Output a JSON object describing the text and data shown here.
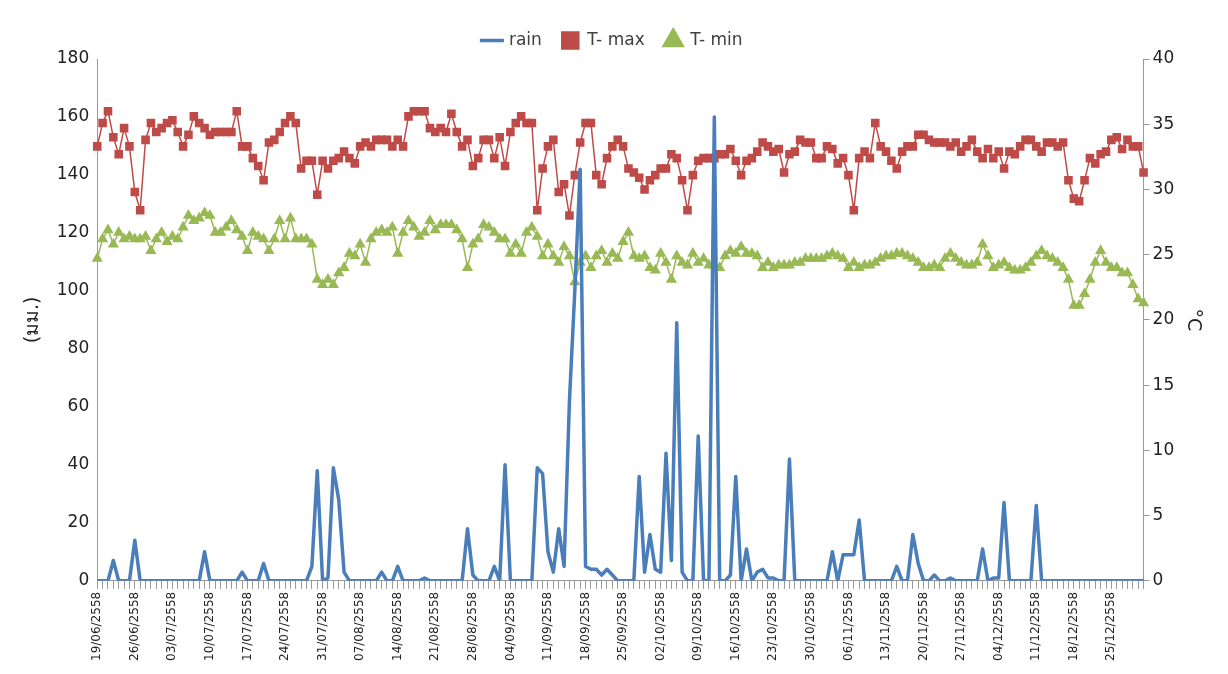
{
  "chart_data": {
    "type": "line",
    "ylabel": "(มม.)",
    "y2label": "°C",
    "legend": "top",
    "grid": false,
    "categories": [
      "19/06/2558",
      null,
      null,
      null,
      null,
      null,
      null,
      "26/06/2558",
      null,
      null,
      null,
      null,
      null,
      null,
      "03/07/2558",
      null,
      null,
      null,
      null,
      null,
      null,
      "10/07/2558",
      null,
      null,
      null,
      null,
      null,
      null,
      "17/07/2558",
      null,
      null,
      null,
      null,
      null,
      null,
      "24/07/2558",
      null,
      null,
      null,
      null,
      null,
      null,
      "31/07/2558",
      null,
      null,
      null,
      null,
      null,
      null,
      "07/08/2558",
      null,
      null,
      null,
      null,
      null,
      null,
      "14/08/2558",
      null,
      null,
      null,
      null,
      null,
      null,
      "21/08/2558",
      null,
      null,
      null,
      null,
      null,
      null,
      "28/08/2558",
      null,
      null,
      null,
      null,
      null,
      null,
      "04/09/2558",
      null,
      null,
      null,
      null,
      null,
      null,
      "11/09/2558",
      null,
      null,
      null,
      null,
      null,
      null,
      "18/09/2558",
      null,
      null,
      null,
      null,
      null,
      null,
      "25/09/2558",
      null,
      null,
      null,
      null,
      null,
      null,
      "02/10/2558",
      null,
      null,
      null,
      null,
      null,
      null,
      "09/10/2558",
      null,
      null,
      null,
      null,
      null,
      null,
      "16/10/2558",
      null,
      null,
      null,
      null,
      null,
      null,
      "23/10/2558",
      null,
      null,
      null,
      null,
      null,
      null,
      "30/10/2558",
      null,
      null,
      null,
      null,
      null,
      null,
      "06/11/2558",
      null,
      null,
      null,
      null,
      null,
      null,
      "13/11/2558",
      null,
      null,
      null,
      null,
      null,
      null,
      "20/11/2558",
      null,
      null,
      null,
      null,
      null,
      null,
      "27/11/2558",
      null,
      null,
      null,
      null,
      null,
      null,
      "04/12/2558",
      null,
      null,
      null,
      null,
      null,
      null,
      "11/12/2558",
      null,
      null,
      null,
      null,
      null,
      null,
      "18/12/2558",
      null,
      null,
      null,
      null,
      null,
      null,
      "25/12/2558",
      null,
      null,
      null,
      null,
      null,
      null
    ],
    "ylim": [
      0,
      180
    ],
    "yticks": [
      0,
      20,
      40,
      60,
      80,
      100,
      120,
      140,
      160,
      180
    ],
    "y2lim": [
      0,
      40
    ],
    "y2ticks": [
      0,
      5,
      10,
      15,
      20,
      25,
      30,
      35,
      40
    ],
    "series": [
      {
        "name": "rain",
        "color": "#4a7ebb",
        "marker": "none",
        "values": [
          0,
          0,
          0,
          7,
          0,
          0,
          0,
          14,
          0,
          0,
          0,
          0,
          0,
          0,
          0,
          0,
          0,
          0,
          0,
          0,
          10,
          0,
          0,
          0,
          0,
          0,
          0,
          3,
          0,
          0,
          0,
          6,
          0,
          0,
          0,
          0,
          0,
          0,
          0,
          0,
          5,
          38,
          0,
          1,
          39,
          28,
          3,
          0,
          0,
          0,
          0,
          0,
          0,
          3,
          0,
          0,
          5,
          0,
          0,
          0,
          0,
          1,
          0,
          0,
          0,
          0,
          0,
          0,
          0,
          18,
          2,
          0,
          0,
          0,
          5,
          0,
          40,
          0,
          0,
          0,
          0,
          0,
          39,
          37,
          10,
          3,
          18,
          5,
          62,
          100,
          142,
          5,
          4,
          4,
          2,
          4,
          2,
          0,
          0,
          0,
          0,
          36,
          3,
          16,
          4,
          3,
          44,
          7,
          89,
          3,
          0,
          0,
          50,
          0,
          0,
          160,
          0,
          0,
          2,
          36,
          0,
          11,
          0,
          3,
          4,
          1,
          1,
          0,
          0,
          42,
          0,
          0,
          0,
          0,
          0,
          0,
          0,
          10,
          0,
          9,
          9,
          9,
          21,
          0,
          0,
          0,
          0,
          0,
          0,
          5,
          0,
          0,
          16,
          6,
          0,
          0,
          2,
          0,
          0,
          1,
          0,
          0,
          0,
          0,
          0,
          11,
          0,
          1,
          1,
          27,
          0,
          0,
          0,
          0,
          0,
          26,
          0,
          0,
          0,
          0,
          0,
          0,
          0,
          0,
          0,
          0,
          0,
          0,
          0,
          0,
          0,
          0,
          0,
          0,
          0,
          0
        ]
      },
      {
        "name": "T- max",
        "color": "#be4b48",
        "marker": "square",
        "axis": "y2",
        "values": [
          33.3,
          35.1,
          36.0,
          34.0,
          32.7,
          34.7,
          33.3,
          29.8,
          28.4,
          33.8,
          35.1,
          34.4,
          34.7,
          35.1,
          35.3,
          34.4,
          33.3,
          34.2,
          35.6,
          35.1,
          34.7,
          34.2,
          34.4,
          34.4,
          34.4,
          34.4,
          36.0,
          33.3,
          33.3,
          32.4,
          31.8,
          30.7,
          33.6,
          33.8,
          34.4,
          35.1,
          35.6,
          35.1,
          31.6,
          32.2,
          32.2,
          29.6,
          32.2,
          31.6,
          32.2,
          32.4,
          32.9,
          32.4,
          32.0,
          33.3,
          33.6,
          33.3,
          33.8,
          33.8,
          33.8,
          33.3,
          33.8,
          33.3,
          35.6,
          36.0,
          36.0,
          36.0,
          34.7,
          34.4,
          34.7,
          34.4,
          35.8,
          34.4,
          33.3,
          33.8,
          31.8,
          32.4,
          33.8,
          33.8,
          32.4,
          34.0,
          31.8,
          34.4,
          35.1,
          35.6,
          35.1,
          35.1,
          28.4,
          31.6,
          33.3,
          33.8,
          29.8,
          30.4,
          28.0,
          31.1,
          33.6,
          35.1,
          35.1,
          31.1,
          30.4,
          32.4,
          33.3,
          33.8,
          33.3,
          31.6,
          31.3,
          30.9,
          30.0,
          30.7,
          31.1,
          31.6,
          31.6,
          32.7,
          32.4,
          30.7,
          28.4,
          31.1,
          32.2,
          32.4,
          32.4,
          32.4,
          32.7,
          32.7,
          33.1,
          32.2,
          31.1,
          32.2,
          32.4,
          32.9,
          33.6,
          33.3,
          32.9,
          33.1,
          31.3,
          32.7,
          32.9,
          33.8,
          33.6,
          33.6,
          32.4,
          32.4,
          33.3,
          33.1,
          32.0,
          32.4,
          31.1,
          28.4,
          32.4,
          32.9,
          32.4,
          35.1,
          33.3,
          32.9,
          32.2,
          31.6,
          32.9,
          33.3,
          33.3,
          34.2,
          34.2,
          33.8,
          33.6,
          33.6,
          33.6,
          33.3,
          33.6,
          32.9,
          33.3,
          33.8,
          32.9,
          32.4,
          33.1,
          32.4,
          32.9,
          31.6,
          32.9,
          32.7,
          33.3,
          33.8,
          33.8,
          33.3,
          32.9,
          33.6,
          33.6,
          33.3,
          33.6,
          30.7,
          29.3,
          29.1,
          30.7,
          32.4,
          32.0,
          32.7,
          32.9,
          33.8,
          34.0,
          33.1,
          33.8,
          33.3,
          33.3,
          31.3
        ]
      },
      {
        "name": "T- min",
        "color": "#98b954",
        "marker": "triangle",
        "axis": "y2",
        "values": [
          24.7,
          26.2,
          26.9,
          25.8,
          26.7,
          26.2,
          26.4,
          26.2,
          26.2,
          26.4,
          25.3,
          26.2,
          26.7,
          26.0,
          26.4,
          26.2,
          27.1,
          28.0,
          27.6,
          27.8,
          28.2,
          28.0,
          26.7,
          26.7,
          27.1,
          27.6,
          26.9,
          26.4,
          25.3,
          26.7,
          26.4,
          26.2,
          25.3,
          26.2,
          27.6,
          26.2,
          27.8,
          26.2,
          26.2,
          26.2,
          25.8,
          23.1,
          22.7,
          23.1,
          22.7,
          23.6,
          24.0,
          25.1,
          24.9,
          25.8,
          24.4,
          26.2,
          26.7,
          26.9,
          26.7,
          27.1,
          25.1,
          26.7,
          27.6,
          27.1,
          26.4,
          26.7,
          27.6,
          26.9,
          27.3,
          27.3,
          27.3,
          26.9,
          26.2,
          24.0,
          25.8,
          26.2,
          27.3,
          27.1,
          26.7,
          26.2,
          26.2,
          25.1,
          25.8,
          25.1,
          26.7,
          27.1,
          26.4,
          24.9,
          25.8,
          24.9,
          24.4,
          25.6,
          24.9,
          22.9,
          24.4,
          24.9,
          24.0,
          24.9,
          25.3,
          24.4,
          25.1,
          24.7,
          26.0,
          26.7,
          24.9,
          24.7,
          24.9,
          24.0,
          23.8,
          25.1,
          24.4,
          23.1,
          24.9,
          24.4,
          24.2,
          25.1,
          24.4,
          24.7,
          24.2,
          24.2,
          24.0,
          24.9,
          25.3,
          25.1,
          25.6,
          25.1,
          25.1,
          24.9,
          24.0,
          24.4,
          24.0,
          24.2,
          24.2,
          24.2,
          24.4,
          24.4,
          24.7,
          24.7,
          24.7,
          24.7,
          24.9,
          25.1,
          24.9,
          24.7,
          24.0,
          24.4,
          24.0,
          24.2,
          24.2,
          24.4,
          24.7,
          24.9,
          24.9,
          25.1,
          25.1,
          24.9,
          24.7,
          24.4,
          24.0,
          24.0,
          24.2,
          24.0,
          24.7,
          25.1,
          24.7,
          24.4,
          24.2,
          24.2,
          24.4,
          25.8,
          24.9,
          24.0,
          24.2,
          24.4,
          24.0,
          23.8,
          23.8,
          24.0,
          24.4,
          24.9,
          25.3,
          24.9,
          24.7,
          24.4,
          24.0,
          23.1,
          21.1,
          21.1,
          22.0,
          23.1,
          24.4,
          25.3,
          24.4,
          24.0,
          24.0,
          23.6,
          23.6,
          22.7,
          21.6,
          21.3
        ]
      }
    ]
  }
}
